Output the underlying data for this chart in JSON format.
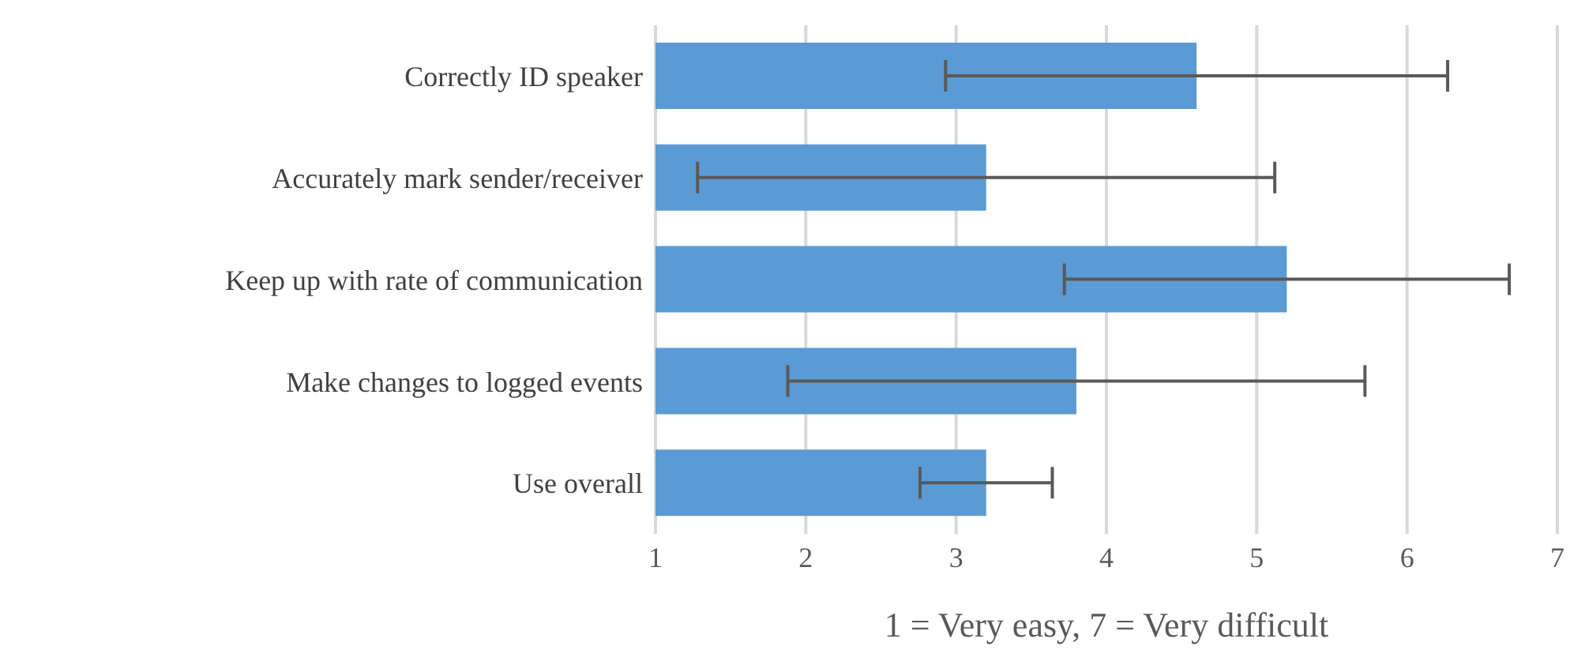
{
  "chart_data": {
    "type": "bar",
    "orientation": "horizontal",
    "categories": [
      "Correctly ID speaker",
      "Accurately mark sender/receiver",
      "Keep up with rate of communication",
      "Make changes to logged events",
      "Use overall"
    ],
    "values": [
      4.6,
      3.2,
      5.2,
      3.8,
      3.2
    ],
    "errors": [
      1.67,
      1.92,
      1.48,
      1.92,
      0.44
    ],
    "color": "#5b9bd5",
    "xlabel": "1 = Very easy, 7 = Very difficult",
    "xlim": [
      1,
      7
    ],
    "xticks": [
      1,
      2,
      3,
      4,
      5,
      6,
      7
    ],
    "grid": "x",
    "legend": false
  }
}
